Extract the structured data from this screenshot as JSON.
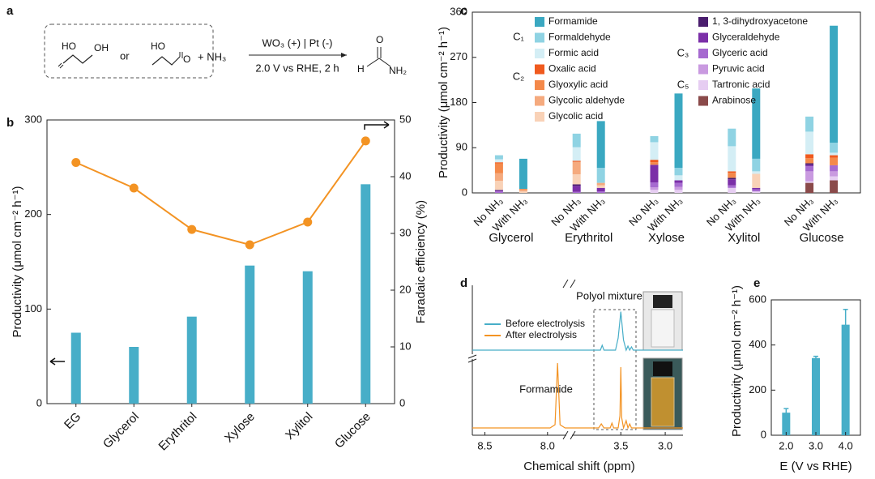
{
  "scheme": {
    "label": "a",
    "reactant1": [
      "HO",
      "OH"
    ],
    "or": "or",
    "reactant2": [
      "HO",
      "O"
    ],
    "reagent": "+ NH₃",
    "conditions_top": "WO₃ (+) | Pt (-)",
    "conditions_bottom": "2.0 V vs RHE, 2 h",
    "product": [
      "H",
      "O",
      "NH₂"
    ]
  },
  "chart_data": [
    {
      "label": "b",
      "type": "bar_line",
      "categories": [
        "EG",
        "Glycerol",
        "Erythritol",
        "Xylose",
        "Xylitol",
        "Glucose"
      ],
      "series": [
        {
          "color": "#47aec8",
          "values": [
            75,
            60,
            92,
            146,
            140,
            232
          ]
        },
        {
          "color": "#f39323",
          "values": [
            42.5,
            38,
            30.7,
            28,
            32,
            46.3
          ],
          "axis": "y2"
        }
      ],
      "ylabel": "Productivity (μmol cm⁻² h⁻¹)",
      "y2label": "Faradaic efficiency (%)",
      "ylim": [
        0,
        300
      ],
      "yticks": [
        0,
        100,
        200,
        300
      ],
      "y2lim": [
        0,
        50
      ],
      "y2ticks": [
        0,
        10,
        20,
        30,
        40,
        50
      ]
    },
    {
      "label": "c",
      "type": "stacked_bar",
      "groups": [
        "Glycerol",
        "Erythritol",
        "Xylose",
        "Xylitol",
        "Glucose"
      ],
      "categories": [
        "No NH₃",
        "With NH₃",
        "No NH₃",
        "With NH₃",
        "No NH₃",
        "With NH₃",
        "No NH₃",
        "With NH₃",
        "No NH₃",
        "With NH₃"
      ],
      "legend_groups": [
        "C₁",
        "C₂",
        "C₃",
        "C₅"
      ],
      "series": [
        {
          "name": "Formamide",
          "color": "#3aa8c1",
          "values": [
            0,
            60,
            0,
            93,
            0,
            148,
            0,
            140,
            0,
            233
          ]
        },
        {
          "name": "Formaldehyde",
          "color": "#8fd3e3",
          "values": [
            8,
            0,
            27,
            30,
            12,
            15,
            35,
            25,
            30,
            20
          ]
        },
        {
          "name": "Formic acid",
          "color": "#d4eef5",
          "values": [
            6,
            0,
            27,
            0,
            35,
            10,
            50,
            5,
            45,
            5
          ]
        },
        {
          "name": "Oxalic acid",
          "color": "#f05a1e",
          "values": [
            2,
            0,
            2,
            0,
            5,
            0,
            3,
            0,
            8,
            5
          ]
        },
        {
          "name": "Glyoxylic acid",
          "color": "#f4894a",
          "values": [
            20,
            2,
            0,
            0,
            5,
            0,
            10,
            0,
            10,
            15
          ]
        },
        {
          "name": "Glycolic aldehyde",
          "color": "#f5aa7e",
          "values": [
            15,
            3,
            25,
            5,
            0,
            0,
            0,
            0,
            0,
            0
          ]
        },
        {
          "name": "Glycolic acid",
          "color": "#f9d2b7",
          "values": [
            18,
            3,
            20,
            5,
            0,
            0,
            0,
            28,
            0,
            0
          ]
        },
        {
          "name": "1, 3-dihydroxyacetone",
          "color": "#4a1d6e",
          "values": [
            1,
            0,
            3,
            0,
            0,
            0,
            3,
            0,
            3,
            0
          ]
        },
        {
          "name": "Glyceraldehyde",
          "color": "#7b2fa8",
          "values": [
            2,
            0,
            12,
            7,
            35,
            5,
            12,
            3,
            3,
            0
          ]
        },
        {
          "name": "Glyceric acid",
          "color": "#a66ad0",
          "values": [
            3,
            0,
            2,
            3,
            10,
            8,
            5,
            4,
            10,
            12
          ]
        },
        {
          "name": "Pyruvic acid",
          "color": "#c99ae0",
          "values": [
            0,
            0,
            0,
            0,
            5,
            6,
            0,
            0,
            20,
            10
          ]
        },
        {
          "name": "Tartronic acid",
          "color": "#e6cdf2",
          "values": [
            0,
            0,
            0,
            0,
            6,
            6,
            10,
            3,
            3,
            8
          ]
        },
        {
          "name": "Arabinose",
          "color": "#8a4a4a",
          "values": [
            0,
            0,
            0,
            0,
            0,
            0,
            0,
            0,
            20,
            25
          ]
        }
      ],
      "ylabel": "Productivity (μmol cm⁻² h⁻¹)",
      "ylim": [
        0,
        360
      ],
      "yticks": [
        0,
        90,
        180,
        270,
        360
      ]
    },
    {
      "label": "d",
      "type": "spectrum",
      "xlabel": "Chemical shift (ppm)",
      "xlim": [
        8.6,
        2.8
      ],
      "xbreak": [
        7.85,
        4.05
      ],
      "xticks": [
        8.5,
        {
          "value": 8,
          "label": "8.0"
        },
        3.5,
        {
          "value": 3,
          "label": "3.0"
        }
      ],
      "annotations": [
        "Polyol mixture",
        "Formamide"
      ],
      "series": [
        {
          "name": "Before electrolysis",
          "color": "#47aec8",
          "x": [
            8.6,
            7.85,
            4.05,
            3.73,
            3.71,
            3.69,
            3.56,
            3.53,
            3.5,
            3.47,
            3.44,
            3.42,
            3.4,
            3.38,
            3.36,
            2.8
          ],
          "values": [
            0,
            0,
            0,
            0,
            12,
            0,
            0,
            30,
            95,
            25,
            0,
            10,
            0,
            8,
            0,
            0
          ]
        },
        {
          "name": "After electrolysis",
          "color": "#f39323",
          "x": [
            8.6,
            7.98,
            7.94,
            7.92,
            7.9,
            7.86,
            7.85,
            4.05,
            3.75,
            3.72,
            3.69,
            3.62,
            3.6,
            3.58,
            3.53,
            3.51,
            3.5,
            3.49,
            3.47,
            3.44,
            3.42,
            3.4,
            3.38,
            3.36,
            2.8
          ],
          "values": [
            0,
            0,
            8,
            160,
            8,
            0,
            0,
            0,
            0,
            10,
            0,
            0,
            12,
            0,
            0,
            30,
            150,
            25,
            0,
            18,
            0,
            10,
            0,
            0,
            0
          ]
        }
      ]
    },
    {
      "label": "e",
      "type": "bar_error",
      "categories": [
        "2.0",
        "3.0",
        "4.0"
      ],
      "color": "#47aec8",
      "values": [
        100,
        342,
        490
      ],
      "errors": [
        18,
        8,
        68
      ],
      "xlabel": "E (V vs RHE)",
      "ylabel": "Productivity (μmol cm⁻² h⁻¹)",
      "ylim": [
        0,
        600
      ],
      "yticks": [
        0,
        200,
        400,
        600
      ]
    }
  ]
}
